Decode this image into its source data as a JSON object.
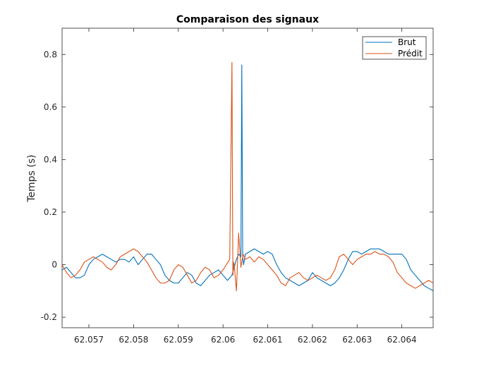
{
  "chart_data": {
    "type": "line",
    "title": "Comparaison des signaux",
    "xlabel": "",
    "ylabel": "Temps (s)",
    "xlim": [
      62.0564,
      62.0647
    ],
    "ylim": [
      -0.24,
      0.9
    ],
    "xticks": [
      62.057,
      62.058,
      62.059,
      62.06,
      62.061,
      62.062,
      62.063,
      62.064
    ],
    "xtick_labels": [
      "62.057",
      "62.058",
      "62.059",
      "62.06",
      "62.061",
      "62.062",
      "62.063",
      "62.064"
    ],
    "yticks": [
      -0.2,
      0,
      0.2,
      0.4,
      0.6,
      0.8
    ],
    "ytick_labels": [
      "-0.2",
      "0",
      "0.2",
      "0.4",
      "0.6",
      "0.8"
    ],
    "grid": false,
    "legend_position": "top-right",
    "series": [
      {
        "name": "Brut",
        "color": "#0072BD",
        "x": [
          62.0564,
          62.0565,
          62.0566,
          62.0567,
          62.0568,
          62.0569,
          62.057,
          62.0571,
          62.0572,
          62.0573,
          62.0574,
          62.0575,
          62.0576,
          62.0577,
          62.0578,
          62.0579,
          62.058,
          62.0581,
          62.0582,
          62.0583,
          62.0584,
          62.0585,
          62.0586,
          62.0587,
          62.0588,
          62.0589,
          62.059,
          62.0591,
          62.0592,
          62.0593,
          62.0594,
          62.0595,
          62.0596,
          62.0597,
          62.0598,
          62.0599,
          62.06,
          62.0601,
          62.0602,
          62.0603,
          62.06035,
          62.0604,
          62.06042,
          62.06044,
          62.06046,
          62.0605,
          62.0606,
          62.0607,
          62.0608,
          62.0609,
          62.061,
          62.0611,
          62.0612,
          62.0613,
          62.0614,
          62.0615,
          62.0616,
          62.0617,
          62.0618,
          62.0619,
          62.062,
          62.0621,
          62.0622,
          62.0623,
          62.0624,
          62.0625,
          62.0626,
          62.0627,
          62.0628,
          62.0629,
          62.063,
          62.0631,
          62.0632,
          62.0633,
          62.0634,
          62.0635,
          62.0636,
          62.0637,
          62.0638,
          62.0639,
          62.064,
          62.0641,
          62.0642,
          62.0643,
          62.0644,
          62.0645,
          62.0646,
          62.0647
        ],
        "y": [
          -0.02,
          -0.01,
          -0.03,
          -0.05,
          -0.05,
          -0.04,
          0.0,
          0.02,
          0.03,
          0.04,
          0.03,
          0.02,
          0.01,
          0.02,
          0.02,
          0.01,
          0.03,
          0.0,
          0.02,
          0.04,
          0.04,
          0.02,
          0.0,
          -0.04,
          -0.06,
          -0.07,
          -0.07,
          -0.05,
          -0.03,
          -0.04,
          -0.07,
          -0.08,
          -0.06,
          -0.04,
          -0.03,
          -0.02,
          -0.04,
          -0.06,
          -0.04,
          0.02,
          0.04,
          0.03,
          0.76,
          0.03,
          0.0,
          0.04,
          0.05,
          0.06,
          0.05,
          0.04,
          0.05,
          0.04,
          0.0,
          -0.03,
          -0.05,
          -0.06,
          -0.07,
          -0.08,
          -0.07,
          -0.06,
          -0.03,
          -0.05,
          -0.06,
          -0.07,
          -0.08,
          -0.07,
          -0.05,
          -0.02,
          0.02,
          0.05,
          0.05,
          0.04,
          0.05,
          0.06,
          0.06,
          0.06,
          0.05,
          0.04,
          0.04,
          0.04,
          0.04,
          0.02,
          -0.02,
          -0.04,
          -0.06,
          -0.08,
          -0.09,
          -0.1
        ]
      },
      {
        "name": "Prédit",
        "color": "#D95319",
        "x": [
          62.0564,
          62.0565,
          62.0566,
          62.0567,
          62.0568,
          62.0569,
          62.057,
          62.0571,
          62.0572,
          62.0573,
          62.0574,
          62.0575,
          62.0576,
          62.0577,
          62.0578,
          62.0579,
          62.058,
          62.0581,
          62.0582,
          62.0583,
          62.0584,
          62.0585,
          62.0586,
          62.0587,
          62.0588,
          62.0589,
          62.059,
          62.0591,
          62.0592,
          62.0593,
          62.0594,
          62.0595,
          62.0596,
          62.0597,
          62.0598,
          62.0599,
          62.06,
          62.06015,
          62.0602,
          62.06022,
          62.06024,
          62.06026,
          62.0603,
          62.06035,
          62.0604,
          62.06045,
          62.0605,
          62.0606,
          62.0607,
          62.0608,
          62.0609,
          62.061,
          62.0611,
          62.0612,
          62.0613,
          62.0614,
          62.0615,
          62.0616,
          62.0617,
          62.0618,
          62.0619,
          62.062,
          62.0621,
          62.0622,
          62.0623,
          62.0624,
          62.0625,
          62.0626,
          62.0627,
          62.0628,
          62.0629,
          62.063,
          62.0631,
          62.0632,
          62.0633,
          62.0634,
          62.0635,
          62.0636,
          62.0637,
          62.0638,
          62.0639,
          62.064,
          62.0641,
          62.0642,
          62.0643,
          62.0644,
          62.0645,
          62.0646,
          62.0647
        ],
        "y": [
          0.0,
          -0.03,
          -0.05,
          -0.04,
          -0.02,
          0.01,
          0.02,
          0.03,
          0.02,
          0.01,
          -0.01,
          -0.02,
          0.0,
          0.03,
          0.04,
          0.05,
          0.06,
          0.05,
          0.03,
          0.01,
          -0.02,
          -0.05,
          -0.07,
          -0.07,
          -0.06,
          -0.02,
          0.0,
          -0.01,
          -0.04,
          -0.07,
          -0.06,
          -0.03,
          -0.01,
          -0.02,
          -0.05,
          -0.04,
          -0.02,
          0.02,
          0.77,
          -0.04,
          0.01,
          -0.02,
          -0.1,
          0.12,
          -0.01,
          0.04,
          0.02,
          0.03,
          0.01,
          0.03,
          0.02,
          0.0,
          -0.02,
          -0.04,
          -0.07,
          -0.08,
          -0.05,
          -0.04,
          -0.03,
          -0.05,
          -0.06,
          -0.05,
          -0.04,
          -0.05,
          -0.06,
          -0.05,
          -0.02,
          0.03,
          0.04,
          0.02,
          0.0,
          0.02,
          0.03,
          0.04,
          0.04,
          0.05,
          0.04,
          0.04,
          0.03,
          0.01,
          -0.03,
          -0.05,
          -0.07,
          -0.08,
          -0.09,
          -0.08,
          -0.07,
          -0.06,
          -0.07
        ]
      }
    ]
  }
}
